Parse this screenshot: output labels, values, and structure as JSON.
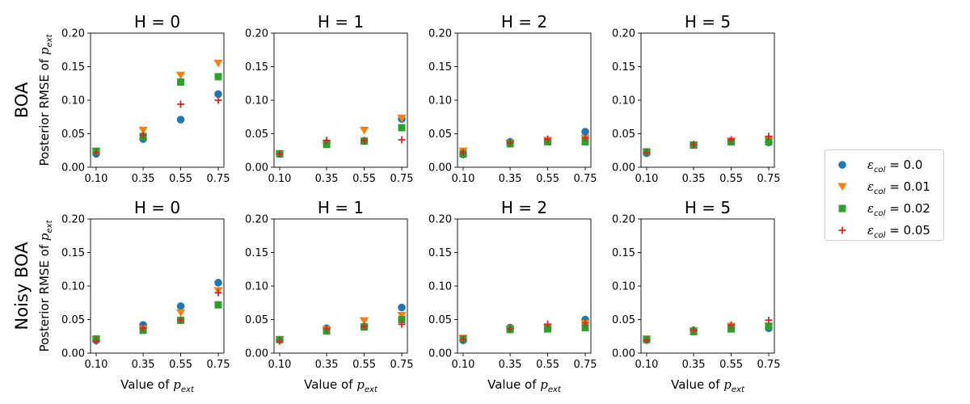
{
  "chart_data": {
    "type": "scatter",
    "x_ticks": [
      0.1,
      0.35,
      0.55,
      0.75
    ],
    "x_tick_labels": [
      "0.10",
      "0.35",
      "0.55",
      "0.75"
    ],
    "y_ticks": [
      0.0,
      0.05,
      0.1,
      0.15,
      0.2
    ],
    "y_tick_labels": [
      "0.00",
      "0.05",
      "0.10",
      "0.15",
      "0.20"
    ],
    "xlim": [
      0.07,
      0.78
    ],
    "ylim": [
      0,
      0.2
    ],
    "xlabel": "Value of p_ext",
    "ylabel": "Posterior RMSE of p_ext",
    "grid": false,
    "legend_placement": "right",
    "row_labels": [
      "BOA",
      "Noisy BOA"
    ],
    "legend": [
      {
        "symbol": "ε",
        "sub": "col",
        "text": " = 0.0",
        "marker": "circle",
        "color": "#1f77b4"
      },
      {
        "symbol": "ε",
        "sub": "col",
        "text": " = 0.01",
        "marker": "triangle-down",
        "color": "#ff7f0e"
      },
      {
        "symbol": "ε",
        "sub": "col",
        "text": " = 0.02",
        "marker": "square",
        "color": "#2ca02c"
      },
      {
        "symbol": "ε",
        "sub": "col",
        "text": " = 0.05",
        "marker": "plus",
        "color": "#d62728"
      }
    ],
    "panels": [
      {
        "row": 0,
        "col": 0,
        "title": "H = 0",
        "series": [
          {
            "values": [
              0.02,
              0.042,
              0.071,
              0.109
            ]
          },
          {
            "values": [
              0.023,
              0.055,
              0.137,
              0.155
            ]
          },
          {
            "values": [
              0.024,
              0.046,
              0.127,
              0.135
            ]
          },
          {
            "values": [
              0.022,
              0.048,
              0.094,
              0.1
            ]
          }
        ]
      },
      {
        "row": 0,
        "col": 1,
        "title": "H = 1",
        "series": [
          {
            "values": [
              0.02,
              0.036,
              0.039,
              0.072
            ]
          },
          {
            "values": [
              0.02,
              0.035,
              0.055,
              0.073
            ]
          },
          {
            "values": [
              0.02,
              0.034,
              0.039,
              0.059
            ]
          },
          {
            "values": [
              0.02,
              0.04,
              0.04,
              0.041
            ]
          }
        ]
      },
      {
        "row": 0,
        "col": 2,
        "title": "H = 2",
        "series": [
          {
            "values": [
              0.019,
              0.038,
              0.039,
              0.053
            ]
          },
          {
            "values": [
              0.024,
              0.036,
              0.04,
              0.043
            ]
          },
          {
            "values": [
              0.02,
              0.035,
              0.038,
              0.038
            ]
          },
          {
            "values": [
              0.022,
              0.036,
              0.042,
              0.044
            ]
          }
        ]
      },
      {
        "row": 0,
        "col": 3,
        "title": "H = 5",
        "series": [
          {
            "values": [
              0.021,
              0.033,
              0.038,
              0.037
            ]
          },
          {
            "values": [
              0.022,
              0.033,
              0.039,
              0.04
            ]
          },
          {
            "values": [
              0.023,
              0.033,
              0.038,
              0.038
            ]
          },
          {
            "values": [
              0.022,
              0.034,
              0.041,
              0.046
            ]
          }
        ]
      },
      {
        "row": 1,
        "col": 0,
        "title": "H = 0",
        "series": [
          {
            "values": [
              0.019,
              0.042,
              0.07,
              0.105
            ]
          },
          {
            "values": [
              0.02,
              0.036,
              0.06,
              0.093
            ]
          },
          {
            "values": [
              0.021,
              0.034,
              0.049,
              0.072
            ]
          },
          {
            "values": [
              0.018,
              0.037,
              0.049,
              0.09
            ]
          }
        ]
      },
      {
        "row": 1,
        "col": 1,
        "title": "H = 1",
        "series": [
          {
            "values": [
              0.02,
              0.037,
              0.039,
              0.068
            ]
          },
          {
            "values": [
              0.02,
              0.035,
              0.048,
              0.056
            ]
          },
          {
            "values": [
              0.02,
              0.033,
              0.039,
              0.05
            ]
          },
          {
            "values": [
              0.018,
              0.036,
              0.04,
              0.043
            ]
          }
        ]
      },
      {
        "row": 1,
        "col": 2,
        "title": "H = 2",
        "series": [
          {
            "values": [
              0.019,
              0.038,
              0.037,
              0.05
            ]
          },
          {
            "values": [
              0.022,
              0.036,
              0.038,
              0.044
            ]
          },
          {
            "values": [
              0.021,
              0.035,
              0.036,
              0.038
            ]
          },
          {
            "values": [
              0.02,
              0.036,
              0.043,
              0.045
            ]
          }
        ]
      },
      {
        "row": 1,
        "col": 3,
        "title": "H = 5",
        "series": [
          {
            "values": [
              0.02,
              0.034,
              0.038,
              0.037
            ]
          },
          {
            "values": [
              0.021,
              0.033,
              0.04,
              0.04
            ]
          },
          {
            "values": [
              0.02,
              0.032,
              0.036,
              0.04
            ]
          },
          {
            "values": [
              0.019,
              0.034,
              0.042,
              0.049
            ]
          }
        ]
      }
    ]
  }
}
